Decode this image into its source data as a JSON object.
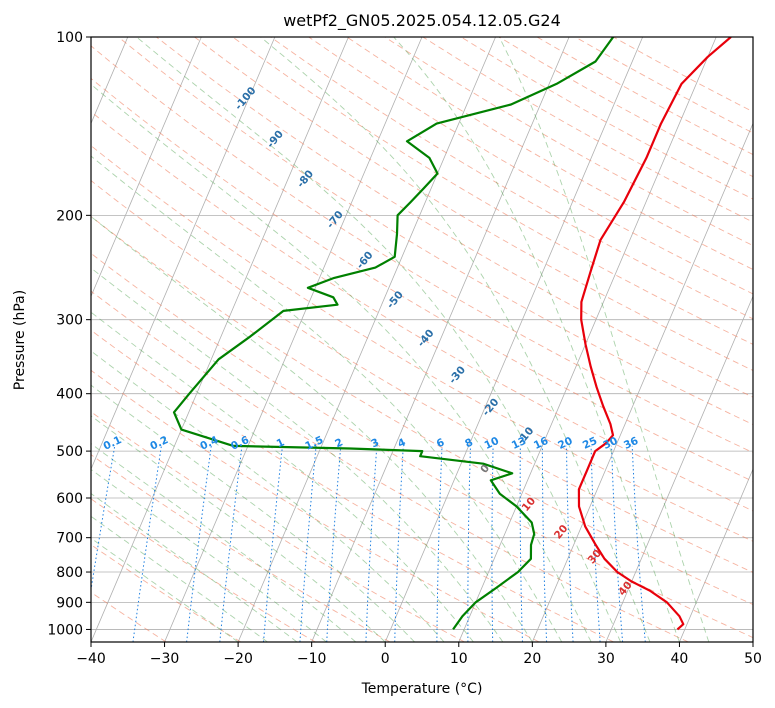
{
  "chart_data": {
    "type": "line",
    "title": "wetPf2_GN05.2025.054.12.05.G24",
    "xlabel": "Temperature (°C)",
    "ylabel": "Pressure (hPa)",
    "xlim": [
      -40,
      50
    ],
    "ylim": [
      1050,
      100
    ],
    "y_scale": "log",
    "grid": true,
    "x_ticks": [
      -40,
      -30,
      -20,
      -10,
      0,
      10,
      20,
      30,
      40,
      50
    ],
    "y_ticks": [
      100,
      200,
      300,
      400,
      500,
      600,
      700,
      800,
      900,
      1000
    ],
    "series": [
      {
        "name": "",
        "color": "#e8000b",
        "role": "temperature",
        "points": [
          [
            12,
            100
          ],
          [
            10,
            108
          ],
          [
            8,
            120
          ],
          [
            7.5,
            140
          ],
          [
            7.5,
            160
          ],
          [
            7,
            190
          ],
          [
            6,
            220
          ],
          [
            6.5,
            250
          ],
          [
            7,
            280
          ],
          [
            8,
            300
          ],
          [
            10,
            330
          ],
          [
            12,
            360
          ],
          [
            14,
            390
          ],
          [
            16,
            420
          ],
          [
            18,
            450
          ],
          [
            19,
            470
          ],
          [
            18.5,
            485
          ],
          [
            17.5,
            500
          ],
          [
            17.5,
            540
          ],
          [
            17.5,
            580
          ],
          [
            18.5,
            620
          ],
          [
            20.5,
            670
          ],
          [
            23,
            720
          ],
          [
            25,
            760
          ],
          [
            27.5,
            800
          ],
          [
            30,
            830
          ],
          [
            33,
            860
          ],
          [
            36,
            900
          ],
          [
            38.5,
            950
          ],
          [
            39.5,
            980
          ],
          [
            39,
            1000
          ]
        ]
      },
      {
        "name": "",
        "color": "#008000",
        "role": "dewpoint",
        "points": [
          [
            -4,
            100
          ],
          [
            -5,
            110
          ],
          [
            -9,
            120
          ],
          [
            -14,
            130
          ],
          [
            -23,
            140
          ],
          [
            -26,
            150
          ],
          [
            -22,
            160
          ],
          [
            -20,
            170
          ],
          [
            -21,
            180
          ],
          [
            -22,
            190
          ],
          [
            -23,
            200
          ],
          [
            -22,
            215
          ],
          [
            -21,
            235
          ],
          [
            -23,
            245
          ],
          [
            -28,
            255
          ],
          [
            -31,
            265
          ],
          [
            -27,
            275
          ],
          [
            -26,
            283
          ],
          [
            -33,
            290
          ],
          [
            -36,
            320
          ],
          [
            -39,
            350
          ],
          [
            -41,
            400
          ],
          [
            -42,
            430
          ],
          [
            -40,
            460
          ],
          [
            -32,
            490
          ],
          [
            -16,
            495
          ],
          [
            -6,
            500
          ],
          [
            -6,
            510
          ],
          [
            3,
            525
          ],
          [
            7.5,
            545
          ],
          [
            5,
            560
          ],
          [
            7,
            590
          ],
          [
            10,
            620
          ],
          [
            13,
            660
          ],
          [
            14,
            690
          ],
          [
            14.2,
            720
          ],
          [
            15,
            760
          ],
          [
            14,
            800
          ],
          [
            12,
            850
          ],
          [
            10,
            900
          ],
          [
            9,
            950
          ],
          [
            8.5,
            1000
          ]
        ]
      }
    ],
    "dry_adiabat_labels": [
      "-100",
      "-90",
      "-80",
      "-70",
      "-60",
      "-50",
      "-40",
      "-30",
      "-20",
      "-10"
    ],
    "mixing_ratio_labels": [
      "0.1",
      "0.2",
      "0.4",
      "0.6",
      "1",
      "1.5",
      "2",
      "3",
      "4",
      "6",
      "8",
      "10",
      "13",
      "16",
      "20",
      "25",
      "30",
      "36"
    ],
    "moist_adiabat_labels": [
      "0",
      "10",
      "20",
      "30",
      "40"
    ]
  },
  "colors": {
    "dry_adiabat": "#f08060",
    "moist_adiabat": "#5aa85a",
    "mixing_ratio": "#1e7fe0",
    "isotherm": "#b0b0b0",
    "dry_label": "#2a6fa8",
    "mixing_label": "#1e88e5",
    "moist_label": "#d93030",
    "moist_zero_label": "#777777"
  }
}
